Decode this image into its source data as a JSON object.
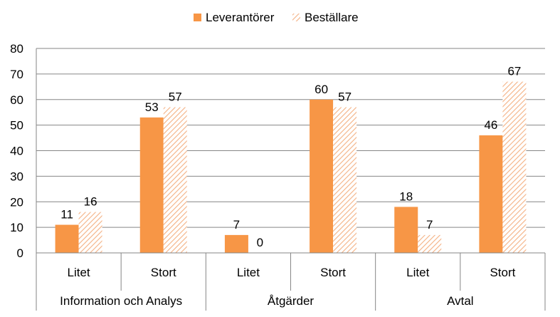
{
  "chart_data": {
    "type": "bar",
    "title": "",
    "xlabel": "",
    "ylabel": "",
    "ylim": [
      0,
      80
    ],
    "yticks": [
      "0",
      "10",
      "20",
      "30",
      "40",
      "50",
      "60",
      "70",
      "80"
    ],
    "grid": true,
    "legend_position": "top",
    "groups": [
      {
        "label": "Information och Analys",
        "categories": [
          "Litet",
          "Stort"
        ]
      },
      {
        "label": "Åtgärder",
        "categories": [
          "Litet",
          "Stort"
        ]
      },
      {
        "label": "Avtal",
        "categories": [
          "Litet",
          "Stort"
        ]
      }
    ],
    "categories": [
      "Litet",
      "Stort",
      "Litet",
      "Stort",
      "Litet",
      "Stort"
    ],
    "series": [
      {
        "name": "Leverantörer",
        "values": [
          11,
          53,
          7,
          60,
          18,
          46
        ],
        "labels": [
          "11",
          "53",
          "7",
          "60",
          "18",
          "46"
        ],
        "color": "#F79646",
        "pattern": "solid"
      },
      {
        "name": "Beställare",
        "values": [
          16,
          57,
          0,
          57,
          7,
          67
        ],
        "labels": [
          "16",
          "57",
          "0",
          "57",
          "7",
          "67"
        ],
        "color": "#F79646",
        "pattern": "diagonal-hatch"
      }
    ]
  }
}
